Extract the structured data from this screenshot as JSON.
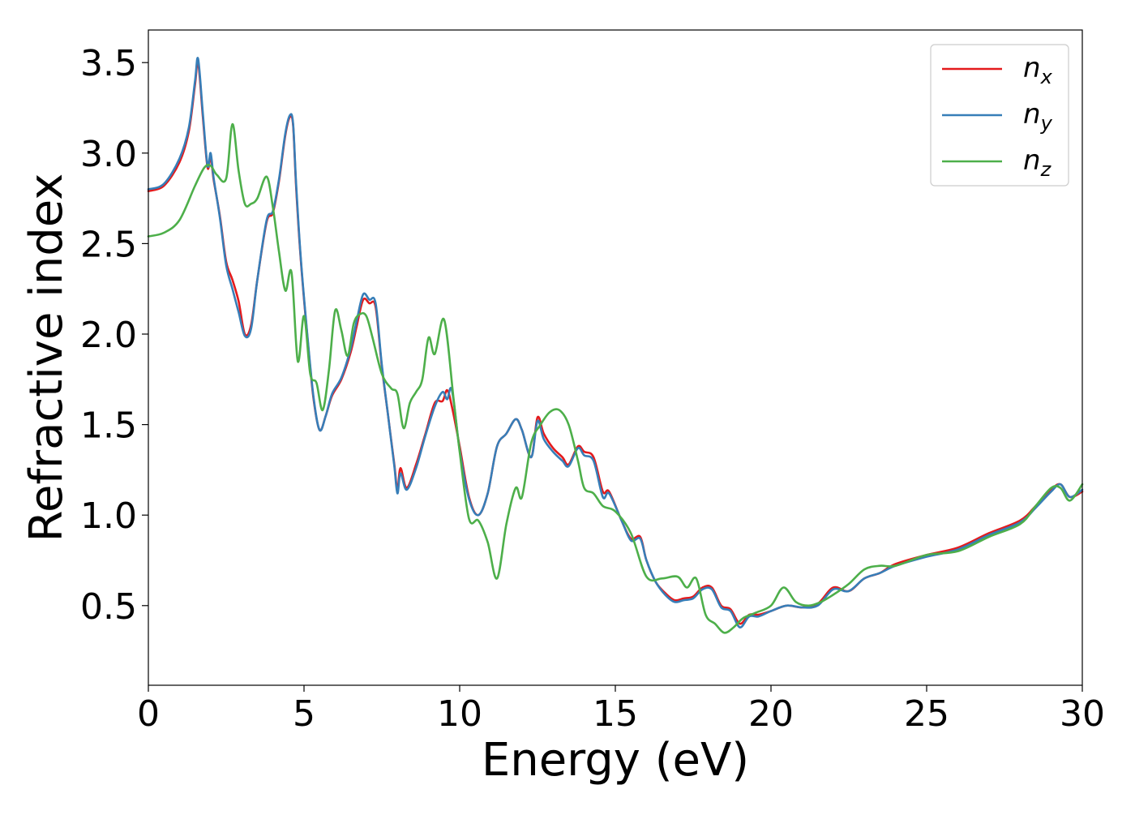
{
  "chart_data": {
    "type": "line",
    "xlabel": "Energy (eV)",
    "ylabel": "Refractive index",
    "xlim": [
      0,
      30
    ],
    "ylim": [
      0.06,
      3.68
    ],
    "xticks": [
      "0",
      "5",
      "10",
      "15",
      "20",
      "25",
      "30"
    ],
    "yticks": [
      "0.5",
      "1.0",
      "1.5",
      "2.0",
      "2.5",
      "3.0",
      "3.5"
    ],
    "grid": false,
    "legend_position": "top-right",
    "series": [
      {
        "name": "nx",
        "name_base": "n",
        "name_sub": "x",
        "color": "#e41a1c",
        "x": [
          0,
          0.5,
          1.0,
          1.3,
          1.5,
          1.6,
          1.75,
          1.9,
          2.0,
          2.1,
          2.3,
          2.5,
          2.7,
          2.9,
          3.1,
          3.3,
          3.5,
          3.8,
          4.0,
          4.2,
          4.4,
          4.55,
          4.65,
          4.75,
          4.9,
          5.1,
          5.3,
          5.5,
          5.7,
          5.9,
          6.2,
          6.5,
          6.7,
          6.9,
          7.1,
          7.3,
          7.5,
          7.7,
          7.9,
          8.0,
          8.1,
          8.3,
          8.6,
          8.9,
          9.2,
          9.45,
          9.6,
          9.75,
          10.0,
          10.3,
          10.6,
          10.9,
          11.2,
          11.5,
          11.8,
          12.0,
          12.3,
          12.5,
          12.7,
          13.0,
          13.3,
          13.5,
          13.8,
          14.0,
          14.3,
          14.6,
          14.8,
          15.2,
          15.5,
          15.8,
          16.0,
          16.3,
          16.6,
          16.9,
          17.2,
          17.5,
          17.8,
          18.1,
          18.4,
          18.7,
          19.0,
          19.3,
          19.6,
          20.0,
          20.5,
          21.0,
          21.5,
          22.0,
          22.5,
          23.0,
          23.5,
          24.0,
          25.0,
          26.0,
          27.0,
          28.0,
          28.5,
          29.0,
          29.3,
          29.6,
          30.0
        ],
        "y": [
          2.79,
          2.82,
          2.95,
          3.12,
          3.38,
          3.5,
          3.2,
          2.92,
          2.98,
          2.85,
          2.65,
          2.4,
          2.3,
          2.18,
          2.0,
          2.05,
          2.3,
          2.62,
          2.67,
          2.85,
          3.1,
          3.2,
          3.15,
          2.8,
          2.4,
          2.0,
          1.65,
          1.47,
          1.55,
          1.66,
          1.75,
          1.9,
          2.05,
          2.19,
          2.17,
          2.15,
          1.82,
          1.55,
          1.28,
          1.14,
          1.26,
          1.15,
          1.28,
          1.45,
          1.62,
          1.63,
          1.69,
          1.6,
          1.38,
          1.1,
          1.0,
          1.12,
          1.38,
          1.45,
          1.53,
          1.47,
          1.32,
          1.54,
          1.45,
          1.37,
          1.32,
          1.28,
          1.38,
          1.35,
          1.32,
          1.13,
          1.13,
          0.97,
          0.87,
          0.88,
          0.75,
          0.63,
          0.57,
          0.53,
          0.54,
          0.55,
          0.6,
          0.6,
          0.5,
          0.48,
          0.4,
          0.45,
          0.45,
          0.47,
          0.5,
          0.49,
          0.51,
          0.6,
          0.58,
          0.65,
          0.68,
          0.73,
          0.78,
          0.82,
          0.9,
          0.97,
          1.05,
          1.14,
          1.17,
          1.1,
          1.13
        ]
      },
      {
        "name": "ny",
        "name_base": "n",
        "name_sub": "y",
        "color": "#377eb8",
        "x": [
          0,
          0.5,
          1.0,
          1.3,
          1.5,
          1.6,
          1.75,
          1.9,
          2.0,
          2.1,
          2.3,
          2.5,
          2.7,
          2.9,
          3.1,
          3.3,
          3.5,
          3.8,
          4.0,
          4.2,
          4.4,
          4.55,
          4.65,
          4.75,
          4.9,
          5.1,
          5.3,
          5.5,
          5.7,
          5.9,
          6.2,
          6.5,
          6.7,
          6.9,
          7.1,
          7.3,
          7.5,
          7.7,
          7.9,
          8.0,
          8.1,
          8.3,
          8.6,
          8.9,
          9.2,
          9.45,
          9.6,
          9.75,
          10.0,
          10.3,
          10.6,
          10.9,
          11.2,
          11.5,
          11.8,
          12.0,
          12.3,
          12.5,
          12.7,
          13.0,
          13.3,
          13.5,
          13.8,
          14.0,
          14.3,
          14.6,
          14.8,
          15.2,
          15.5,
          15.8,
          16.0,
          16.3,
          16.6,
          16.9,
          17.2,
          17.5,
          17.8,
          18.1,
          18.4,
          18.7,
          19.0,
          19.3,
          19.6,
          20.0,
          20.5,
          21.0,
          21.5,
          22.0,
          22.5,
          23.0,
          23.5,
          24.0,
          25.0,
          26.0,
          27.0,
          28.0,
          28.5,
          29.0,
          29.3,
          29.6,
          30.0
        ],
        "y": [
          2.8,
          2.83,
          2.97,
          3.14,
          3.4,
          3.52,
          3.22,
          2.93,
          3.0,
          2.86,
          2.64,
          2.38,
          2.25,
          2.12,
          1.99,
          2.03,
          2.3,
          2.63,
          2.68,
          2.86,
          3.11,
          3.21,
          3.16,
          2.82,
          2.41,
          2.01,
          1.66,
          1.47,
          1.55,
          1.67,
          1.76,
          1.92,
          2.08,
          2.22,
          2.19,
          2.17,
          1.83,
          1.55,
          1.27,
          1.12,
          1.23,
          1.14,
          1.26,
          1.44,
          1.6,
          1.68,
          1.64,
          1.69,
          1.36,
          1.09,
          1.0,
          1.12,
          1.38,
          1.45,
          1.53,
          1.47,
          1.32,
          1.52,
          1.42,
          1.35,
          1.3,
          1.27,
          1.37,
          1.33,
          1.3,
          1.1,
          1.12,
          0.97,
          0.86,
          0.87,
          0.75,
          0.63,
          0.56,
          0.52,
          0.53,
          0.54,
          0.59,
          0.59,
          0.49,
          0.47,
          0.38,
          0.44,
          0.44,
          0.47,
          0.5,
          0.49,
          0.5,
          0.59,
          0.58,
          0.65,
          0.68,
          0.72,
          0.77,
          0.81,
          0.89,
          0.96,
          1.04,
          1.13,
          1.17,
          1.1,
          1.14
        ]
      },
      {
        "name": "nz",
        "name_base": "n",
        "name_sub": "z",
        "color": "#4daf4a",
        "x": [
          0,
          0.5,
          1.0,
          1.5,
          1.8,
          2.0,
          2.2,
          2.5,
          2.7,
          2.9,
          3.1,
          3.3,
          3.5,
          3.8,
          4.0,
          4.2,
          4.4,
          4.6,
          4.8,
          5.0,
          5.2,
          5.4,
          5.6,
          5.8,
          6.0,
          6.2,
          6.4,
          6.6,
          6.8,
          7.0,
          7.2,
          7.5,
          7.8,
          8.0,
          8.2,
          8.4,
          8.6,
          8.8,
          9.0,
          9.2,
          9.5,
          9.8,
          10.0,
          10.3,
          10.6,
          10.9,
          11.2,
          11.5,
          11.8,
          12.0,
          12.3,
          12.6,
          12.9,
          13.2,
          13.5,
          13.8,
          14.0,
          14.3,
          14.6,
          15.0,
          15.5,
          16.0,
          16.5,
          17.0,
          17.3,
          17.6,
          17.9,
          18.2,
          18.5,
          18.8,
          19.1,
          19.5,
          20.0,
          20.4,
          20.8,
          21.2,
          21.6,
          22.0,
          22.5,
          23.0,
          23.5,
          24.0,
          25.0,
          26.0,
          27.0,
          28.0,
          28.5,
          29.0,
          29.3,
          29.6,
          30.0
        ],
        "y": [
          2.54,
          2.56,
          2.63,
          2.82,
          2.92,
          2.93,
          2.88,
          2.86,
          3.16,
          2.9,
          2.72,
          2.72,
          2.75,
          2.87,
          2.7,
          2.45,
          2.24,
          2.34,
          1.85,
          2.1,
          1.78,
          1.73,
          1.58,
          1.8,
          2.13,
          2.02,
          1.88,
          2.06,
          2.11,
          2.1,
          1.98,
          1.78,
          1.7,
          1.67,
          1.48,
          1.62,
          1.68,
          1.75,
          1.98,
          1.89,
          2.08,
          1.65,
          1.35,
          0.98,
          0.97,
          0.85,
          0.65,
          0.95,
          1.15,
          1.1,
          1.4,
          1.5,
          1.57,
          1.58,
          1.5,
          1.3,
          1.15,
          1.12,
          1.05,
          1.02,
          0.9,
          0.66,
          0.65,
          0.66,
          0.6,
          0.65,
          0.45,
          0.4,
          0.35,
          0.38,
          0.43,
          0.46,
          0.5,
          0.6,
          0.52,
          0.5,
          0.52,
          0.56,
          0.62,
          0.7,
          0.72,
          0.72,
          0.78,
          0.8,
          0.88,
          0.95,
          1.05,
          1.15,
          1.15,
          1.08,
          1.17
        ]
      }
    ]
  }
}
